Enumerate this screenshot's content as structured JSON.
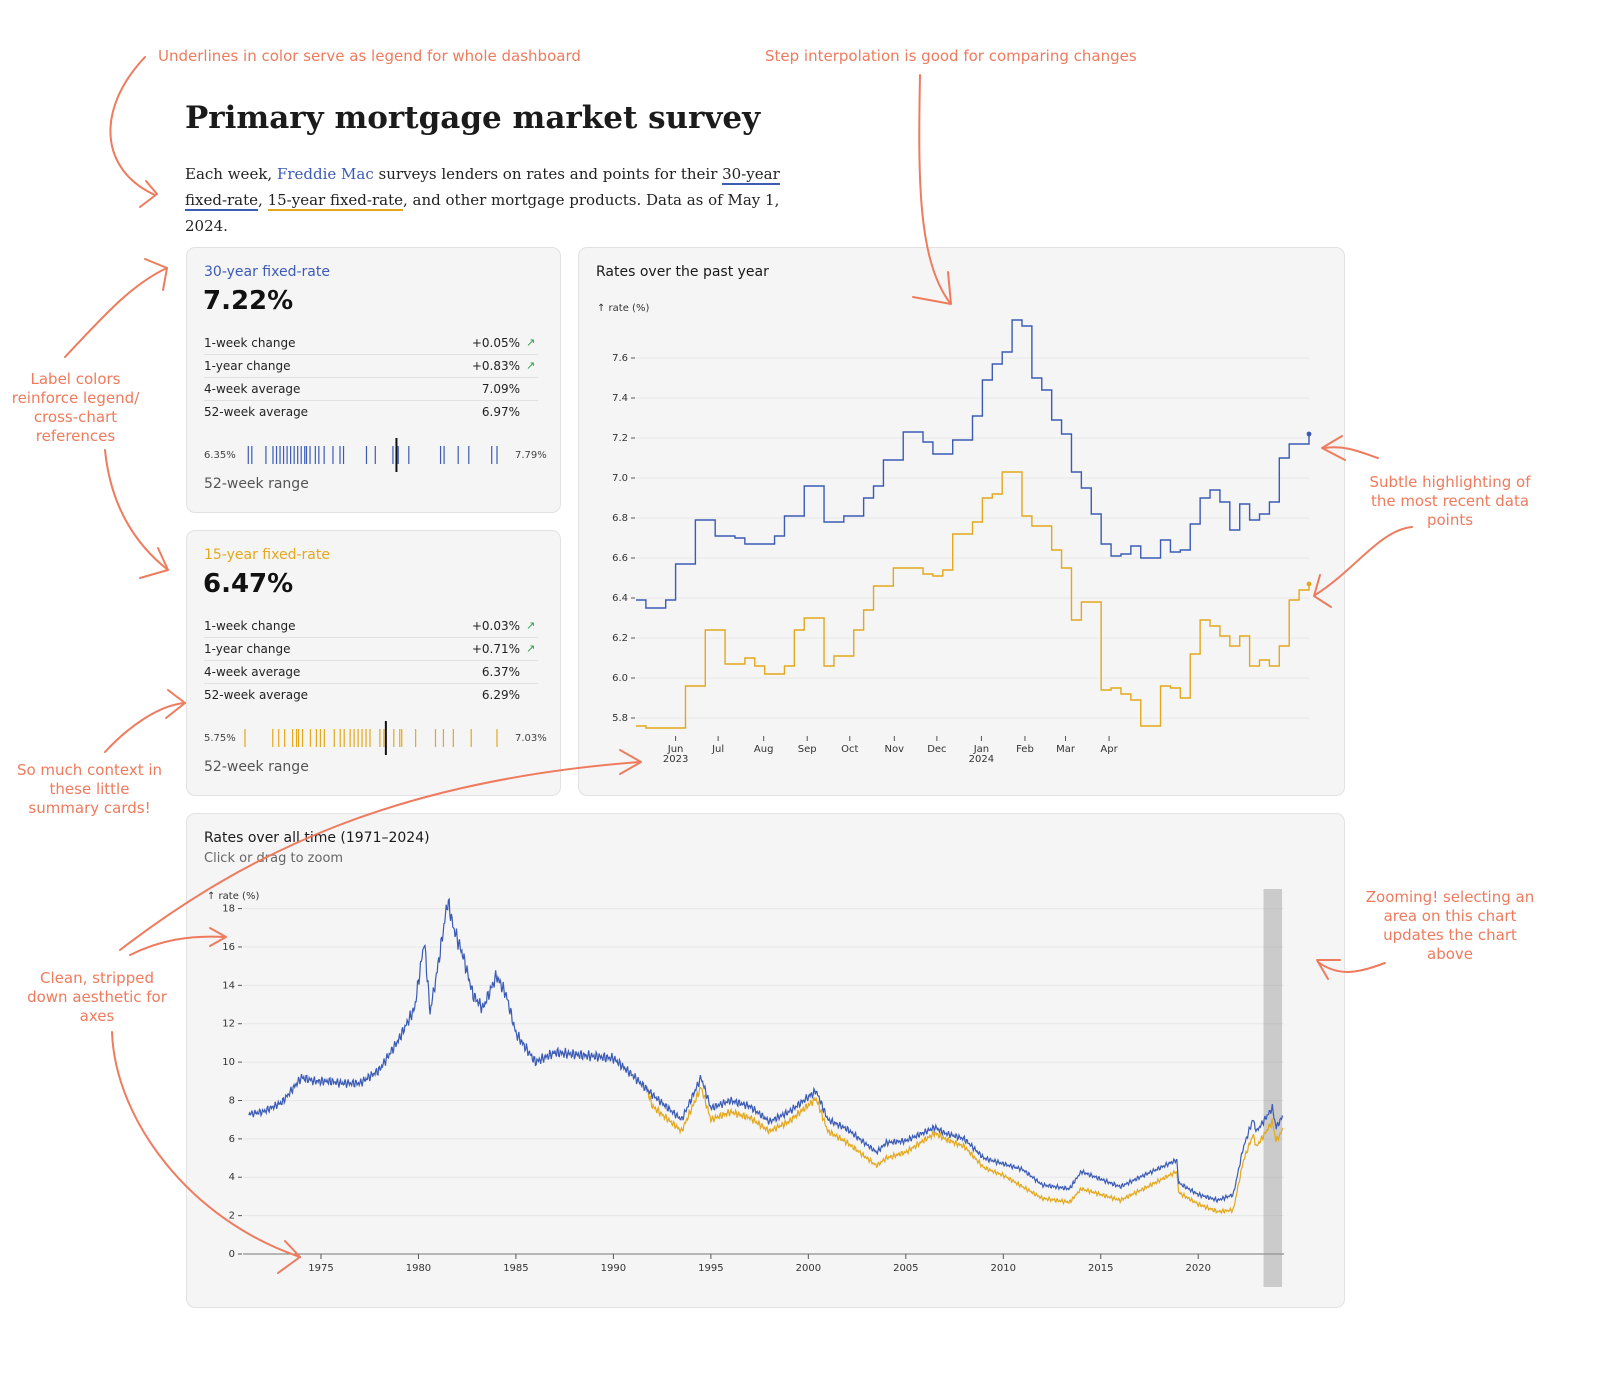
{
  "annotations": {
    "legend_note": "Underlines in color serve as legend for whole dashboard",
    "step_note": "Step interpolation is good for comparing changes",
    "label_colors_note": "Label colors reinforce legend/ cross-chart references",
    "context_note": "So much context in these little summary cards!",
    "axes_note": "Clean, stripped down aesthetic for axes",
    "highlight_note": "Subtle highlighting of the most recent data points",
    "zoom_note": "Zooming! selecting an area on this chart updates the chart above"
  },
  "header": {
    "title": "Primary mortgage market survey",
    "intro_prefix": "Each week, ",
    "intro_link": "Freddie Mac",
    "intro_middle": " surveys lenders on rates and points for their ",
    "intro_30": "30-year fixed-rate",
    "intro_comma": ", ",
    "intro_15": "15-year fixed-rate",
    "intro_suffix": ", and other mortgage products. Data as of May 1, 2024."
  },
  "colors": {
    "rate30": "#3b5bb5",
    "rate15": "#e3a81c",
    "annotation": "#ee7b5e",
    "up_arrow": "#2e9e4a"
  },
  "cards": [
    {
      "title": "30-year fixed-rate",
      "value": "7.22%",
      "stats": [
        {
          "label": "1-week change",
          "value": "+0.05%",
          "arrow": "↗"
        },
        {
          "label": "1-year change",
          "value": "+0.83%",
          "arrow": "↗"
        },
        {
          "label": "4-week average",
          "value": "7.09%",
          "arrow": ""
        },
        {
          "label": "52-week average",
          "value": "6.97%",
          "arrow": ""
        }
      ],
      "range_min": "6.35%",
      "range_max": "7.79%",
      "range_label": "52-week range",
      "range_ticks": [
        6.38,
        6.4,
        6.48,
        6.52,
        6.54,
        6.56,
        6.58,
        6.6,
        6.62,
        6.64,
        6.66,
        6.68,
        6.7,
        6.71,
        6.73,
        6.76,
        6.78,
        6.81,
        6.86,
        6.9,
        6.92,
        7.05,
        7.1,
        7.2,
        7.23,
        7.29,
        7.47,
        7.49,
        7.57,
        7.63,
        7.76,
        7.79
      ],
      "range_current": 7.22
    },
    {
      "title": "15-year fixed-rate",
      "value": "6.47%",
      "stats": [
        {
          "label": "1-week change",
          "value": "+0.03%",
          "arrow": "↗"
        },
        {
          "label": "1-year change",
          "value": "+0.71%",
          "arrow": "↗"
        },
        {
          "label": "4-week average",
          "value": "6.37%",
          "arrow": ""
        },
        {
          "label": "52-week average",
          "value": "6.29%",
          "arrow": ""
        }
      ],
      "range_min": "5.75%",
      "range_max": "7.03%",
      "range_label": "52-week range",
      "range_ticks": [
        5.76,
        5.9,
        5.93,
        5.96,
        6.0,
        6.02,
        6.03,
        6.05,
        6.09,
        6.12,
        6.14,
        6.16,
        6.21,
        6.24,
        6.26,
        6.29,
        6.31,
        6.33,
        6.35,
        6.37,
        6.39,
        6.44,
        6.46,
        6.51,
        6.54,
        6.55,
        6.62,
        6.72,
        6.76,
        6.81,
        6.9,
        7.03
      ],
      "range_current": 6.47
    }
  ],
  "year_chart": {
    "title": "Rates over the past year",
    "y_label": "↑ rate (%)",
    "y_ticks": [
      "5.8",
      "6.0",
      "6.2",
      "6.4",
      "6.6",
      "6.8",
      "7.0",
      "7.2",
      "7.4",
      "7.6"
    ],
    "x_ticks": [
      {
        "label": "Jun",
        "sub": "2023"
      },
      {
        "label": "Jul",
        "sub": ""
      },
      {
        "label": "Aug",
        "sub": ""
      },
      {
        "label": "Sep",
        "sub": ""
      },
      {
        "label": "Oct",
        "sub": ""
      },
      {
        "label": "Nov",
        "sub": ""
      },
      {
        "label": "Dec",
        "sub": ""
      },
      {
        "label": "Jan",
        "sub": "2024"
      },
      {
        "label": "Feb",
        "sub": ""
      },
      {
        "label": "Mar",
        "sub": ""
      },
      {
        "label": "Apr",
        "sub": ""
      }
    ]
  },
  "alltime_chart": {
    "title": "Rates over all time (1971–2024)",
    "subtitle": "Click or drag to zoom",
    "y_label": "↑ rate (%)",
    "y_ticks": [
      "0",
      "2",
      "4",
      "6",
      "8",
      "10",
      "12",
      "14",
      "16",
      "18"
    ],
    "x_ticks": [
      "1975",
      "1980",
      "1985",
      "1990",
      "1995",
      "2000",
      "2005",
      "2010",
      "2015",
      "2020"
    ]
  },
  "chart_data": [
    {
      "type": "line",
      "title": "Rates over the past year",
      "ylabel": "↑ rate (%)",
      "ylim": [
        5.75,
        7.85
      ],
      "x_start": "2023-05-04",
      "x_step_weeks": 1,
      "series": [
        {
          "name": "30-year fixed-rate",
          "values": [
            6.39,
            6.35,
            6.35,
            6.39,
            6.57,
            6.57,
            6.79,
            6.79,
            6.71,
            6.71,
            6.7,
            6.67,
            6.67,
            6.67,
            6.71,
            6.81,
            6.81,
            6.96,
            6.96,
            6.78,
            6.78,
            6.81,
            6.81,
            6.9,
            6.96,
            7.09,
            7.09,
            7.23,
            7.23,
            7.18,
            7.12,
            7.12,
            7.19,
            7.19,
            7.31,
            7.49,
            7.57,
            7.63,
            7.79,
            7.76,
            7.5,
            7.44,
            7.29,
            7.22,
            7.03,
            6.95,
            6.82,
            6.67,
            6.61,
            6.62,
            6.66,
            6.6,
            6.6,
            6.69,
            6.63,
            6.64,
            6.77,
            6.9,
            6.94,
            6.88,
            6.74,
            6.87,
            6.79,
            6.82,
            6.88,
            7.1,
            7.17,
            7.17,
            7.22
          ]
        },
        {
          "name": "15-year fixed-rate",
          "values": [
            5.76,
            5.75,
            5.75,
            5.75,
            5.75,
            5.96,
            5.96,
            6.24,
            6.24,
            6.07,
            6.07,
            6.1,
            6.06,
            6.02,
            6.02,
            6.06,
            6.24,
            6.3,
            6.3,
            6.06,
            6.11,
            6.11,
            6.24,
            6.34,
            6.46,
            6.46,
            6.55,
            6.55,
            6.55,
            6.52,
            6.51,
            6.54,
            6.72,
            6.72,
            6.78,
            6.9,
            6.92,
            7.03,
            7.03,
            6.81,
            6.76,
            6.76,
            6.64,
            6.55,
            6.29,
            6.38,
            6.38,
            5.94,
            5.95,
            5.92,
            5.89,
            5.76,
            5.76,
            5.96,
            5.95,
            5.9,
            6.12,
            6.29,
            6.26,
            6.21,
            6.16,
            6.21,
            6.06,
            6.09,
            6.06,
            6.16,
            6.39,
            6.44,
            6.47
          ]
        }
      ]
    },
    {
      "type": "line",
      "title": "Rates over all time (1971–2024)",
      "ylabel": "↑ rate (%)",
      "ylim": [
        0,
        18.5
      ],
      "xlim": [
        1971,
        2024.4
      ],
      "series": [
        {
          "name": "30-year fixed-rate",
          "x": [
            1971.3,
            1972,
            1973,
            1974,
            1974.7,
            1975.5,
            1976,
            1977,
            1978,
            1979,
            1979.8,
            1980.3,
            1980.6,
            1981,
            1981.5,
            1981.8,
            1982.3,
            1982.8,
            1983.3,
            1984,
            1984.5,
            1985,
            1986,
            1987,
            1988,
            1989,
            1990,
            1991,
            1992,
            1993.5,
            1994.5,
            1995,
            1996,
            1997,
            1998,
            1999,
            2000.4,
            2001,
            2002,
            2003.5,
            2004,
            2005,
            2006.5,
            2007,
            2008,
            2009,
            2010,
            2011,
            2012,
            2013.4,
            2014,
            2015,
            2016,
            2017,
            2018.9,
            2019,
            2020,
            2021,
            2021.8,
            2022.3,
            2022.8,
            2023,
            2023.8,
            2024,
            2024.35
          ],
          "y": [
            7.3,
            7.4,
            7.9,
            9.2,
            9.0,
            9.0,
            8.9,
            8.9,
            9.6,
            11.2,
            12.8,
            16.3,
            12.6,
            15.0,
            18.4,
            17.0,
            15.5,
            13.5,
            12.8,
            14.5,
            13.5,
            11.5,
            10.0,
            10.5,
            10.4,
            10.3,
            10.2,
            9.3,
            8.3,
            7.0,
            9.2,
            7.6,
            8.0,
            7.7,
            6.9,
            7.4,
            8.5,
            7.0,
            6.5,
            5.3,
            5.8,
            5.9,
            6.6,
            6.3,
            6.0,
            5.0,
            4.7,
            4.4,
            3.6,
            3.4,
            4.3,
            3.9,
            3.5,
            4.0,
            4.9,
            3.7,
            3.1,
            2.8,
            3.1,
            5.5,
            7.0,
            6.4,
            7.6,
            6.6,
            7.2
          ]
        },
        {
          "name": "15-year fixed-rate",
          "x": [
            1991.7,
            1992,
            1993.5,
            1994.5,
            1995,
            1996,
            1997,
            1998,
            1999,
            2000.4,
            2001,
            2002,
            2003.5,
            2004,
            2005,
            2006.5,
            2007,
            2008,
            2009,
            2010,
            2011,
            2012,
            2013.4,
            2014,
            2015,
            2016,
            2017,
            2018.9,
            2019,
            2020,
            2021,
            2021.8,
            2022.3,
            2022.8,
            2023,
            2023.8,
            2024,
            2024.35
          ],
          "y": [
            8.7,
            7.7,
            6.4,
            8.7,
            7.0,
            7.4,
            7.1,
            6.4,
            6.9,
            8.1,
            6.4,
            5.8,
            4.6,
            5.0,
            5.3,
            6.3,
            6.0,
            5.6,
            4.5,
            4.1,
            3.5,
            2.9,
            2.7,
            3.4,
            3.1,
            2.8,
            3.3,
            4.3,
            3.2,
            2.6,
            2.2,
            2.3,
            4.8,
            6.2,
            5.6,
            6.9,
            5.9,
            6.5
          ]
        }
      ]
    }
  ]
}
